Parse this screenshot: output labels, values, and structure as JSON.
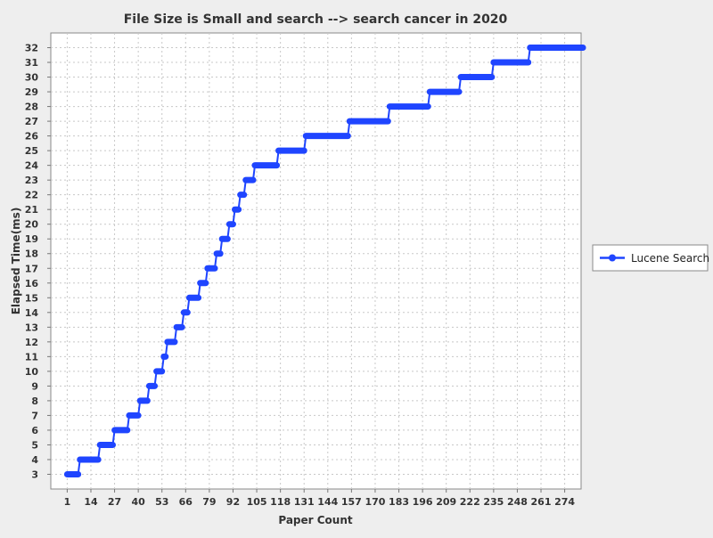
{
  "chart_data": {
    "type": "line",
    "title": "File Size is Small and search --> search cancer in 2020",
    "xlabel": "Paper Count",
    "ylabel": "Elapsed Time(ms)",
    "xlim": [
      -8,
      283
    ],
    "ylim": [
      2,
      33
    ],
    "xticks": [
      1,
      14,
      27,
      40,
      53,
      66,
      79,
      92,
      105,
      118,
      131,
      144,
      157,
      170,
      183,
      196,
      209,
      222,
      235,
      248,
      261,
      274
    ],
    "yticks": [
      3,
      4,
      5,
      6,
      7,
      8,
      9,
      10,
      11,
      12,
      13,
      14,
      15,
      16,
      17,
      18,
      19,
      20,
      21,
      22,
      23,
      24,
      25,
      26,
      27,
      28,
      29,
      30,
      31,
      32
    ],
    "grid": true,
    "legend_position": "right",
    "color": "#1f45ff",
    "series": [
      {
        "name": "Lucene Search",
        "steps": [
          {
            "y": 3,
            "x_start": 1,
            "x_end": 7
          },
          {
            "y": 4,
            "x_start": 8,
            "x_end": 18
          },
          {
            "y": 5,
            "x_start": 19,
            "x_end": 26
          },
          {
            "y": 6,
            "x_start": 27,
            "x_end": 34
          },
          {
            "y": 7,
            "x_start": 35,
            "x_end": 40
          },
          {
            "y": 8,
            "x_start": 41,
            "x_end": 45
          },
          {
            "y": 9,
            "x_start": 46,
            "x_end": 49
          },
          {
            "y": 10,
            "x_start": 50,
            "x_end": 53
          },
          {
            "y": 11,
            "x_start": 54,
            "x_end": 55
          },
          {
            "y": 12,
            "x_start": 56,
            "x_end": 60
          },
          {
            "y": 13,
            "x_start": 61,
            "x_end": 64
          },
          {
            "y": 14,
            "x_start": 65,
            "x_end": 67
          },
          {
            "y": 15,
            "x_start": 68,
            "x_end": 73
          },
          {
            "y": 16,
            "x_start": 74,
            "x_end": 77
          },
          {
            "y": 17,
            "x_start": 78,
            "x_end": 82
          },
          {
            "y": 18,
            "x_start": 83,
            "x_end": 85
          },
          {
            "y": 19,
            "x_start": 86,
            "x_end": 89
          },
          {
            "y": 20,
            "x_start": 90,
            "x_end": 92
          },
          {
            "y": 21,
            "x_start": 93,
            "x_end": 95
          },
          {
            "y": 22,
            "x_start": 96,
            "x_end": 98
          },
          {
            "y": 23,
            "x_start": 99,
            "x_end": 103
          },
          {
            "y": 24,
            "x_start": 104,
            "x_end": 116
          },
          {
            "y": 25,
            "x_start": 117,
            "x_end": 131
          },
          {
            "y": 26,
            "x_start": 132,
            "x_end": 155
          },
          {
            "y": 27,
            "x_start": 156,
            "x_end": 177
          },
          {
            "y": 28,
            "x_start": 178,
            "x_end": 199
          },
          {
            "y": 29,
            "x_start": 200,
            "x_end": 216
          },
          {
            "y": 30,
            "x_start": 217,
            "x_end": 234
          },
          {
            "y": 31,
            "x_start": 235,
            "x_end": 254
          },
          {
            "y": 32,
            "x_start": 255,
            "x_end": 284
          }
        ]
      }
    ]
  }
}
